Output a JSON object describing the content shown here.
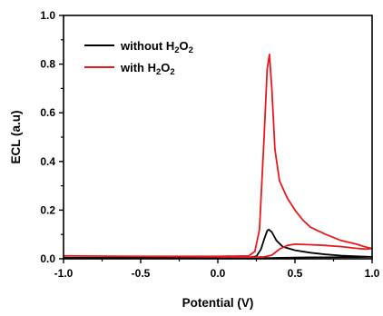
{
  "chart_data": {
    "type": "line",
    "xlabel": "Potential (V)",
    "ylabel": "ECL (a.u)",
    "xlim": [
      -1.0,
      1.0
    ],
    "ylim": [
      0.0,
      1.0
    ],
    "xticks": [
      "-1.0",
      "-0.5",
      "0.0",
      "0.5",
      "1.0"
    ],
    "yticks": [
      "0.0",
      "0.2",
      "0.4",
      "0.6",
      "0.8",
      "1.0"
    ],
    "grid": false,
    "legend_position": "top-left",
    "series": [
      {
        "name": "without H2O2",
        "legend": {
          "prefix": "without H",
          "sub1": "2",
          "mid": "O",
          "sub2": "2"
        },
        "color": "#000000",
        "x": [
          -1.0,
          0.0,
          0.2,
          0.25,
          0.28,
          0.3,
          0.32,
          0.33,
          0.35,
          0.38,
          0.42,
          0.5,
          0.6,
          0.7,
          0.8,
          0.9,
          1.0,
          0.9,
          0.8,
          0.7,
          0.6,
          0.5,
          0.4,
          0.35,
          0.3,
          0.25,
          0.0,
          -0.5,
          -1.0
        ],
        "y": [
          0.004,
          0.004,
          0.005,
          0.01,
          0.04,
          0.08,
          0.115,
          0.12,
          0.11,
          0.075,
          0.05,
          0.035,
          0.025,
          0.018,
          0.013,
          0.01,
          0.008,
          0.007,
          0.007,
          0.006,
          0.006,
          0.005,
          0.004,
          0.003,
          0.003,
          0.003,
          0.003,
          0.003,
          0.004
        ]
      },
      {
        "name": "with H2O2",
        "legend": {
          "prefix": "with H",
          "sub1": "2",
          "mid": "O",
          "sub2": "2"
        },
        "color": "#e8191c",
        "x": [
          -1.0,
          -0.5,
          0.0,
          0.2,
          0.24,
          0.27,
          0.3,
          0.32,
          0.335,
          0.35,
          0.37,
          0.4,
          0.45,
          0.5,
          0.55,
          0.6,
          0.7,
          0.8,
          0.9,
          0.95,
          1.0,
          0.95,
          0.9,
          0.8,
          0.7,
          0.6,
          0.5,
          0.45,
          0.4,
          0.35,
          0.3,
          0.25,
          0.0,
          -0.5,
          -1.0
        ],
        "y": [
          0.012,
          0.01,
          0.01,
          0.012,
          0.03,
          0.12,
          0.5,
          0.78,
          0.84,
          0.7,
          0.45,
          0.32,
          0.25,
          0.2,
          0.16,
          0.13,
          0.1,
          0.075,
          0.06,
          0.05,
          0.042,
          0.04,
          0.043,
          0.05,
          0.055,
          0.058,
          0.06,
          0.055,
          0.04,
          0.015,
          0.008,
          0.007,
          0.008,
          0.01,
          0.012
        ]
      }
    ]
  }
}
